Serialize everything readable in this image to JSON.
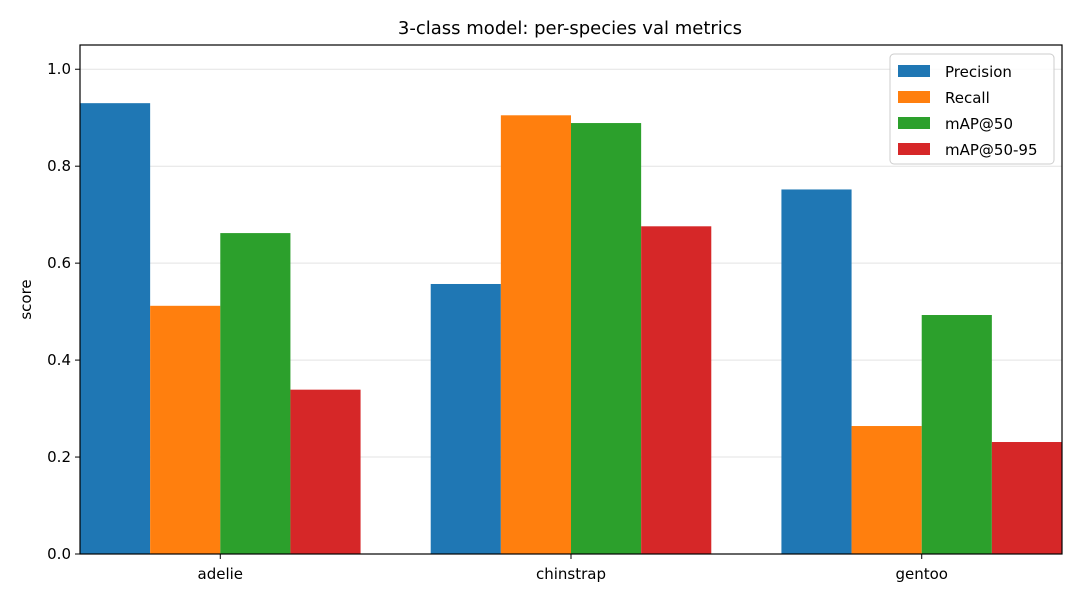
{
  "chart_data": {
    "type": "bar",
    "title": "3-class model: per-species val metrics",
    "xlabel": "",
    "ylabel": "score",
    "categories": [
      "adelie",
      "chinstrap",
      "gentoo"
    ],
    "series": [
      {
        "name": "Precision",
        "color": "#1f77b4",
        "values": [
          0.93,
          0.557,
          0.752
        ]
      },
      {
        "name": "Recall",
        "color": "#ff7f0e",
        "values": [
          0.512,
          0.905,
          0.264
        ]
      },
      {
        "name": "mAP@50",
        "color": "#2ca02c",
        "values": [
          0.662,
          0.889,
          0.493
        ]
      },
      {
        "name": "mAP@50-95",
        "color": "#d62728",
        "values": [
          0.339,
          0.676,
          0.231
        ]
      }
    ],
    "ylim": [
      0,
      1.05
    ],
    "yticks": [
      "0.0",
      "0.2",
      "0.4",
      "0.6",
      "0.8",
      "1.0"
    ],
    "grid": "y",
    "legend_position": "top-right"
  }
}
